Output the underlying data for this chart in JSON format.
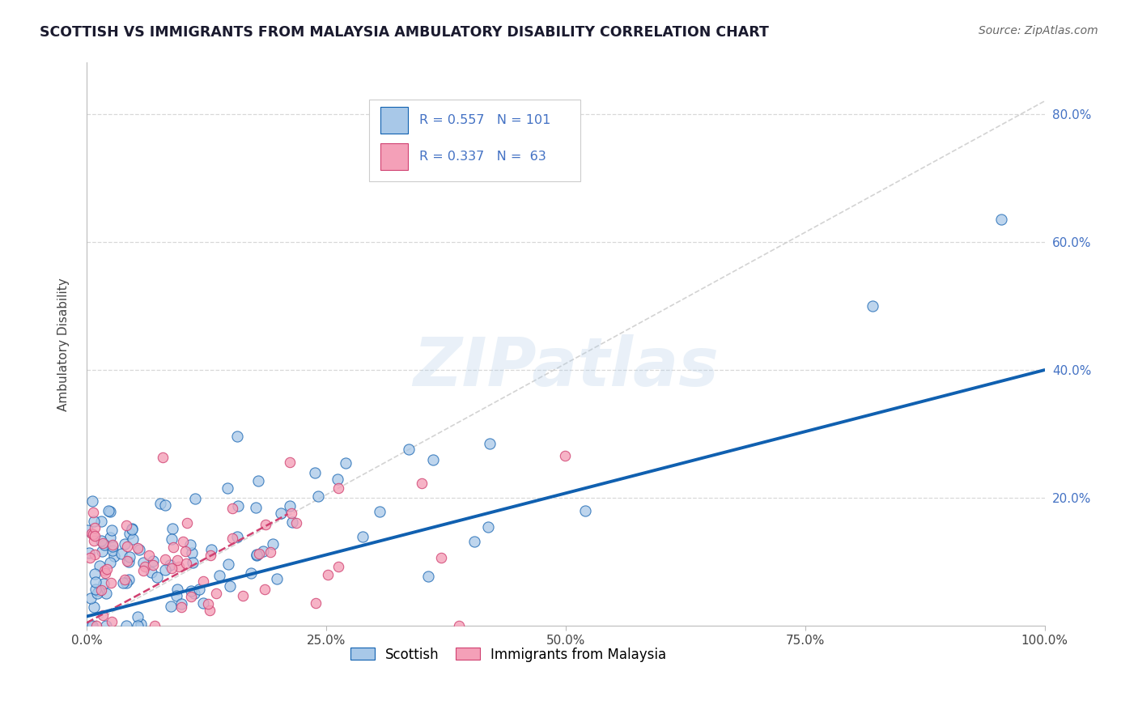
{
  "title": "SCOTTISH VS IMMIGRANTS FROM MALAYSIA AMBULATORY DISABILITY CORRELATION CHART",
  "source_text": "Source: ZipAtlas.com",
  "ylabel": "Ambulatory Disability",
  "legend_label_1": "Scottish",
  "legend_label_2": "Immigrants from Malaysia",
  "R1": 0.557,
  "N1": 101,
  "R2": 0.337,
  "N2": 63,
  "color_scottish": "#a8c8e8",
  "color_malaysia": "#f4a0b8",
  "color_line1": "#1060b0",
  "color_line2": "#d04070",
  "color_refline": "#c8c8c8",
  "color_gridline": "#d8d8d8",
  "color_axis_ticks": "#4472c4",
  "background_color": "#ffffff",
  "xlim": [
    0.0,
    1.0
  ],
  "ylim": [
    0.0,
    0.88
  ],
  "ytick_vals": [
    0.0,
    0.2,
    0.4,
    0.6,
    0.8
  ],
  "ytick_labels": [
    "",
    "20.0%",
    "40.0%",
    "60.0%",
    "80.0%"
  ],
  "xtick_vals": [
    0.0,
    0.25,
    0.5,
    0.75,
    1.0
  ],
  "xtick_labels": [
    "0.0%",
    "25.0%",
    "50.0%",
    "75.0%",
    "100.0%"
  ],
  "watermark": "ZIPatlas",
  "scot_line_x": [
    0.0,
    1.0
  ],
  "scot_line_y": [
    0.015,
    0.4
  ],
  "malay_line_x": [
    0.0,
    0.21
  ],
  "malay_line_y": [
    0.005,
    0.175
  ]
}
